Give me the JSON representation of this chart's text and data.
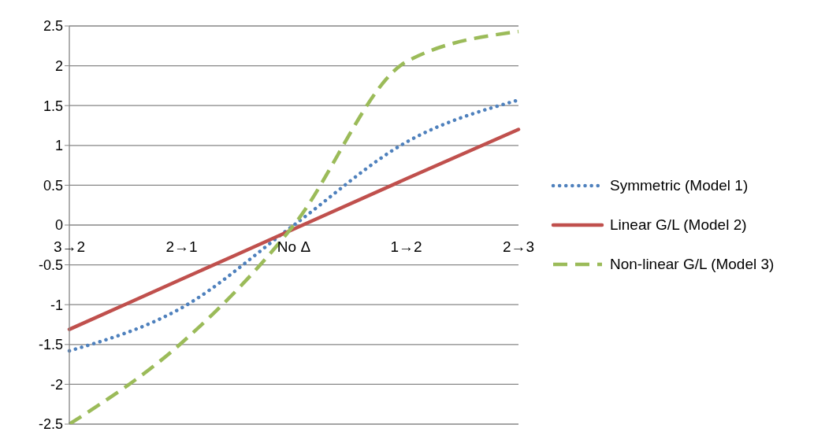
{
  "chart_data": {
    "type": "line",
    "categories": [
      "3→2",
      "2→1",
      "No Δ",
      "1→2",
      "2→3"
    ],
    "series": [
      {
        "name": "Symmetric (Model 1)",
        "color": "#4f81bd",
        "line_style": "dotted",
        "values": [
          -1.58,
          -1.04,
          0,
          1.04,
          1.57
        ]
      },
      {
        "name": "Linear G/L (Model 2)",
        "color": "#c0504d",
        "line_style": "solid",
        "values": [
          -1.31,
          -0.68,
          -0.05,
          0.58,
          1.2
        ]
      },
      {
        "name": "Non-linear G/L (Model 3)",
        "color": "#9bbb59",
        "line_style": "dashed",
        "values": [
          -2.5,
          -1.48,
          0,
          2.05,
          2.43
        ]
      }
    ],
    "ylim": [
      -2.5,
      2.5
    ],
    "yticks": [
      -2.5,
      -2,
      -1.5,
      -1,
      -0.5,
      0,
      0.5,
      1,
      1.5,
      2,
      2.5
    ],
    "grid": "y",
    "legend": "right",
    "marker": "none"
  }
}
